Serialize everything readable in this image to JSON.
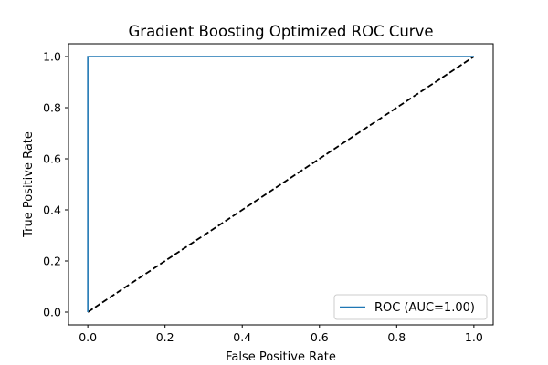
{
  "chart_data": {
    "type": "line",
    "title": "Gradient Boosting Optimized ROC Curve",
    "xlabel": "False Positive Rate",
    "ylabel": "True Positive Rate",
    "xlim": [
      -0.05,
      1.05
    ],
    "ylim": [
      -0.05,
      1.05
    ],
    "x_ticks": [
      0.0,
      0.2,
      0.4,
      0.6,
      0.8,
      1.0
    ],
    "y_ticks": [
      0.0,
      0.2,
      0.4,
      0.6,
      0.8,
      1.0
    ],
    "x_tick_labels": [
      "0.0",
      "0.2",
      "0.4",
      "0.6",
      "0.8",
      "1.0"
    ],
    "y_tick_labels": [
      "0.0",
      "0.2",
      "0.4",
      "0.6",
      "0.8",
      "1.0"
    ],
    "grid": false,
    "legend_position": "lower-right",
    "series": [
      {
        "name": "ROC (AUC=1.00)",
        "x": [
          0.0,
          0.0,
          1.0
        ],
        "y": [
          0.0,
          1.0,
          1.0
        ],
        "color": "#1f77b4",
        "style": "solid",
        "in_legend": true
      },
      {
        "x": [
          0.0,
          1.0
        ],
        "y": [
          0.0,
          1.0
        ],
        "color": "#000000",
        "style": "dashed",
        "in_legend": false
      }
    ]
  }
}
